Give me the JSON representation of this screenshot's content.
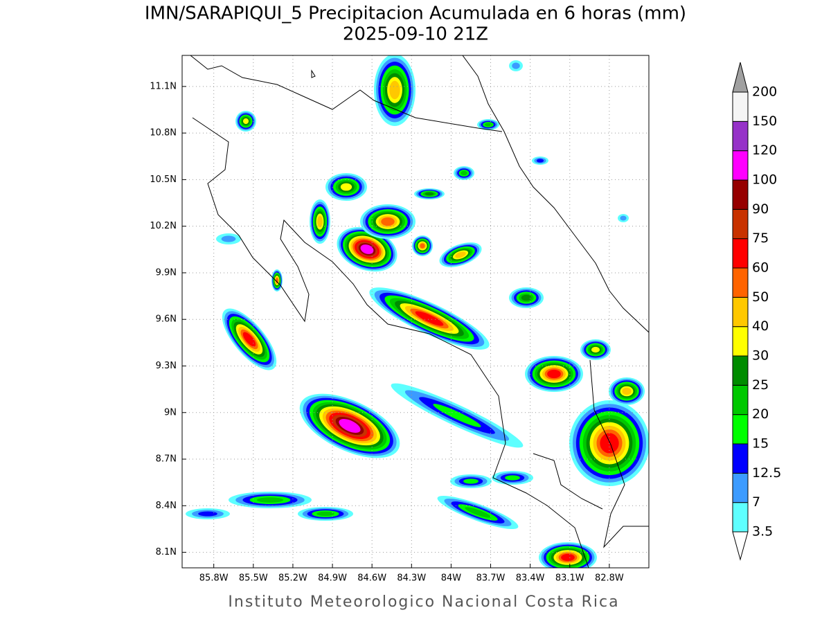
{
  "title": "IMN/SARAPIQUI_5 Precipitacion Acumulada en 6 horas (mm)",
  "subtitle": "2025-09-10 21Z",
  "map": {
    "xlim": [
      -86.04,
      -82.5
    ],
    "ylim": [
      8.0,
      11.3
    ],
    "xticks": [
      {
        "value": -85.8,
        "label": "85.8W"
      },
      {
        "value": -85.5,
        "label": "85.5W"
      },
      {
        "value": -85.2,
        "label": "85.2W"
      },
      {
        "value": -84.9,
        "label": "84.9W"
      },
      {
        "value": -84.6,
        "label": "84.6W"
      },
      {
        "value": -84.3,
        "label": "84.3W"
      },
      {
        "value": -84,
        "label": "84W"
      },
      {
        "value": -83.7,
        "label": "83.7W"
      },
      {
        "value": -83.4,
        "label": "83.4W"
      },
      {
        "value": -83.1,
        "label": "83.1W"
      },
      {
        "value": -82.8,
        "label": "82.8W"
      }
    ],
    "yticks": [
      {
        "value": 8.1,
        "label": "8.1N"
      },
      {
        "value": 8.4,
        "label": "8.4N"
      },
      {
        "value": 8.7,
        "label": "8.7N"
      },
      {
        "value": 9,
        "label": "9N"
      },
      {
        "value": 9.3,
        "label": "9.3N"
      },
      {
        "value": 9.6,
        "label": "9.6N"
      },
      {
        "value": 9.9,
        "label": "9.9N"
      },
      {
        "value": 10.2,
        "label": "10.2N"
      },
      {
        "value": 10.5,
        "label": "10.5N"
      },
      {
        "value": 10.8,
        "label": "10.8N"
      },
      {
        "value": 11.1,
        "label": "11.1N"
      }
    ],
    "grid": true
  },
  "colorbar": {
    "levels": [
      3.5,
      7,
      12.5,
      15,
      20,
      25,
      30,
      40,
      50,
      60,
      75,
      90,
      100,
      120,
      150,
      200
    ],
    "colors": [
      "#5effff",
      "#3c9bff",
      "#0000ff",
      "#00ff00",
      "#00c800",
      "#008c00",
      "#ffff00",
      "#ffc800",
      "#ff6400",
      "#ff0000",
      "#c83200",
      "#960000",
      "#ff00ff",
      "#9632c8",
      "#f5f5f5"
    ],
    "under_color": "#ffffff",
    "over_color": "#a0a0a0"
  },
  "credit": "Instituto Meteorologico Nacional Costa Rica"
}
